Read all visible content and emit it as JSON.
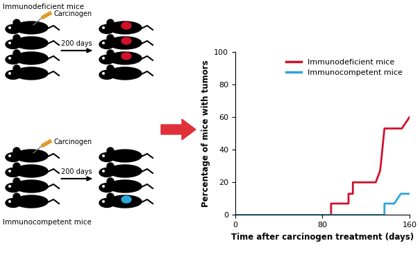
{
  "diagram": {
    "groups": [
      {
        "label": "Immunodeficient mice",
        "treatment": "Carcinogen",
        "interval": "200 days",
        "tumors_after": [
          true,
          true,
          true,
          false
        ],
        "tumor_color": "#d0112b"
      },
      {
        "label": "Immunocompetent mice",
        "treatment": "Carcinogen",
        "interval": "200 days",
        "tumors_after": [
          false,
          false,
          false,
          true
        ],
        "tumor_color": "#2aa7d8"
      }
    ]
  },
  "chart_data": {
    "type": "line",
    "x_label": "Time after carcinogen treatment (days)",
    "y_label": "Percentage of mice with tumors",
    "xlim": [
      0,
      160
    ],
    "xticks": [
      0,
      80,
      160
    ],
    "ylim": [
      0,
      100
    ],
    "yticks": [
      0,
      20,
      40,
      60,
      80,
      100
    ],
    "legend": "upper right",
    "series": [
      {
        "name": "Immunodeficient mice",
        "color": "#d0112b",
        "x": [
          0,
          88,
          88,
          104,
          104,
          108,
          108,
          129,
          133,
          134,
          137,
          153,
          160
        ],
        "values": [
          0,
          0,
          7,
          7,
          13,
          13,
          20,
          20,
          27,
          33,
          53,
          53,
          60
        ]
      },
      {
        "name": "Immunocompetent mice",
        "color": "#2aa7d8",
        "x": [
          0,
          137,
          137,
          146,
          152,
          160
        ],
        "values": [
          0,
          0,
          7,
          7,
          13,
          13
        ]
      }
    ]
  }
}
